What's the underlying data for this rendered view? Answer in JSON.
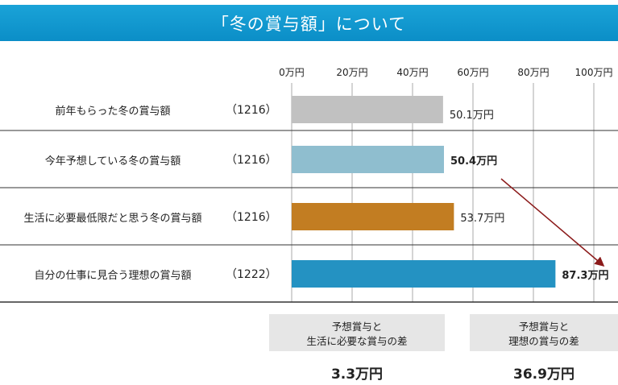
{
  "title": "「冬の賞与額」について",
  "chart_data": {
    "type": "bar",
    "orientation": "horizontal",
    "xlim": [
      0,
      100
    ],
    "ticks": [
      "0万円",
      "20万円",
      "40万円",
      "60万円",
      "80万円",
      "100万円"
    ],
    "grid": true,
    "categories": [
      "前年もらった冬の賞与額",
      "今年予想している冬の賞与額",
      "生活に必要最低限だと思う冬の賞与額",
      "自分の仕事に見合う理想の賞与額"
    ],
    "counts": [
      "（1216）",
      "（1216）",
      "（1216）",
      "（1222）"
    ],
    "values": [
      50.1,
      50.4,
      53.7,
      87.3
    ],
    "data_labels": [
      "50.1万円",
      "50.4万円",
      "53.7万円",
      "87.3万円"
    ],
    "colors": [
      "#c1c1c1",
      "#8fbecf",
      "#c27d22",
      "#2492c2"
    ],
    "annotation": "arrow from 50.4万円 to 87.3万円"
  },
  "summary": [
    {
      "line1": "予想賞与と",
      "line2": "生活に必要な賞与の差",
      "value": "3.3万円"
    },
    {
      "line1": "予想賞与と",
      "line2": "理想の賞与の差",
      "value": "36.9万円"
    }
  ]
}
